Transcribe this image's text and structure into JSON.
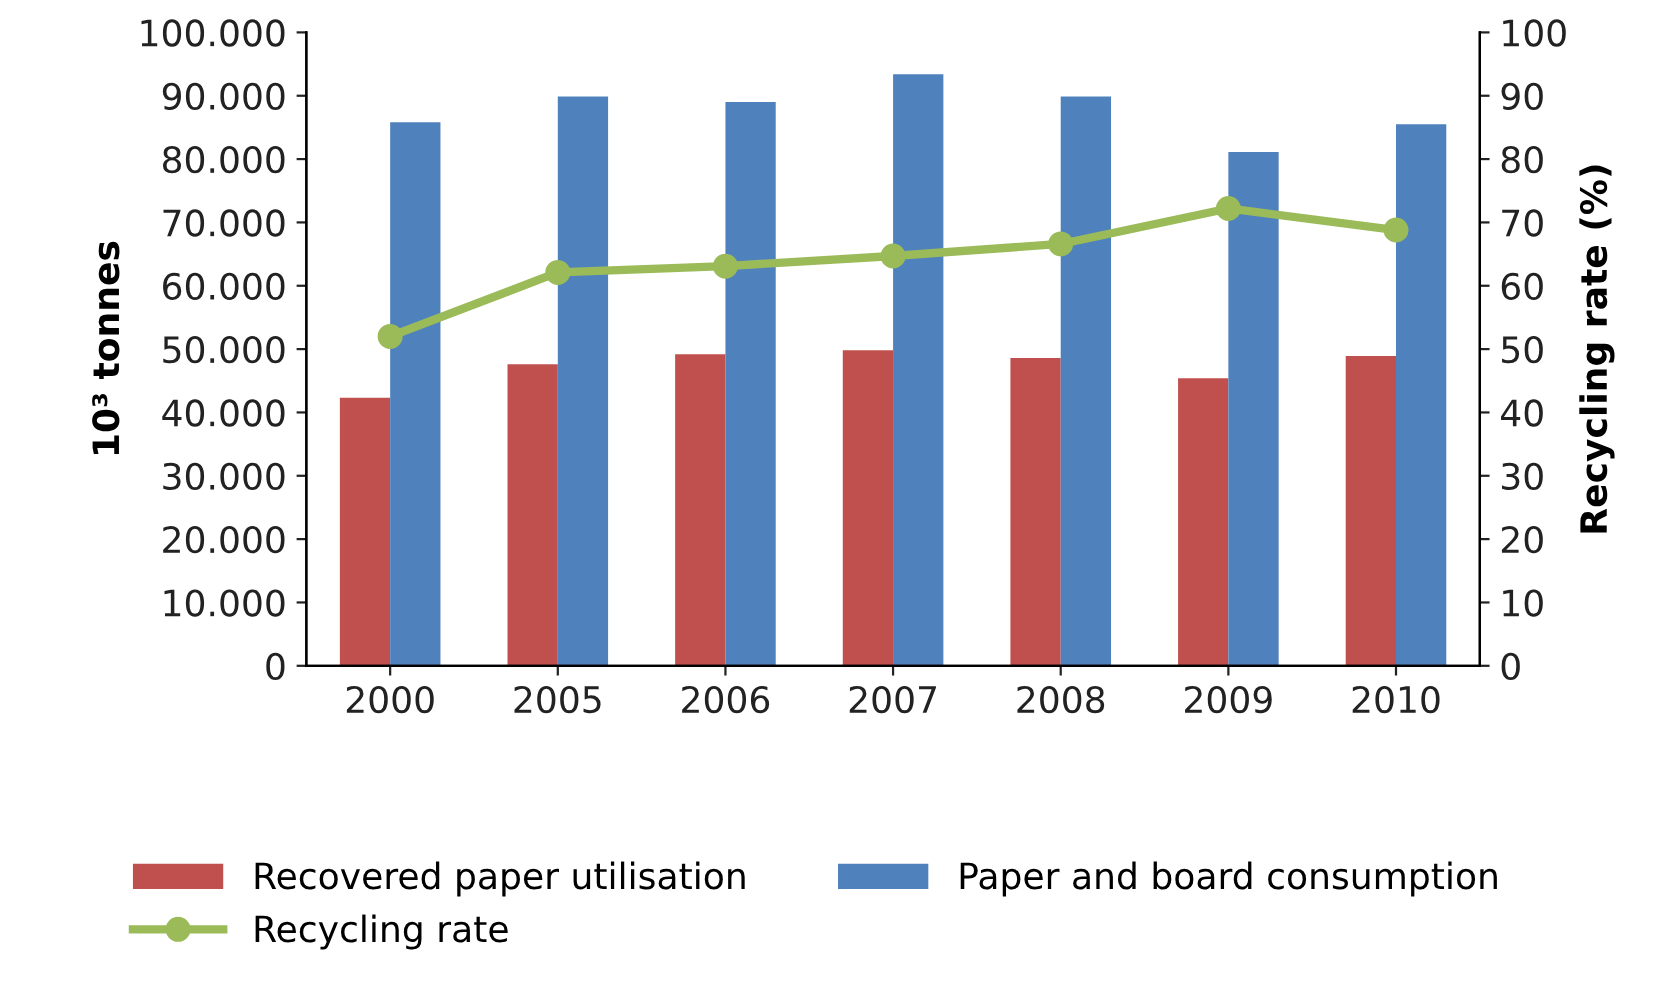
{
  "chart_data": {
    "type": "bar",
    "categories": [
      "2000",
      "2005",
      "2006",
      "2007",
      "2008",
      "2009",
      "2010"
    ],
    "ylabel": "10³ tonnes",
    "y2label": "Recycling rate (%)",
    "series": [
      {
        "name": "Recovered paper utilisation",
        "color": "#c0504d",
        "values": [
          42300,
          47600,
          49200,
          49800,
          48600,
          45400,
          48900
        ]
      },
      {
        "name": "Paper and board consumption",
        "color": "#4f81bd",
        "values": [
          85800,
          89900,
          89000,
          93400,
          89900,
          81100,
          85500
        ]
      },
      {
        "name": "Recycling rate",
        "type": "line",
        "axis": "y2",
        "color": "#9bbb59",
        "marker": "circle",
        "values": [
          52.0,
          62.1,
          63.1,
          64.7,
          66.6,
          72.2,
          68.8
        ]
      }
    ],
    "ylim": [
      0,
      100000
    ],
    "yticks": [
      {
        "value": 0,
        "label": "0"
      },
      {
        "value": 10000,
        "label": "10.000"
      },
      {
        "value": 20000,
        "label": "20.000"
      },
      {
        "value": 30000,
        "label": "30.000"
      },
      {
        "value": 40000,
        "label": "40.000"
      },
      {
        "value": 50000,
        "label": "50.000"
      },
      {
        "value": 60000,
        "label": "60.000"
      },
      {
        "value": 70000,
        "label": "70.000"
      },
      {
        "value": 80000,
        "label": "80.000"
      },
      {
        "value": 90000,
        "label": "90.000"
      },
      {
        "value": 100000,
        "label": "100.000"
      }
    ],
    "y2lim": [
      0,
      100
    ],
    "y2ticks": [
      0,
      10,
      20,
      30,
      40,
      50,
      60,
      70,
      80,
      90,
      100
    ],
    "grid": false,
    "legend": "bottom"
  }
}
